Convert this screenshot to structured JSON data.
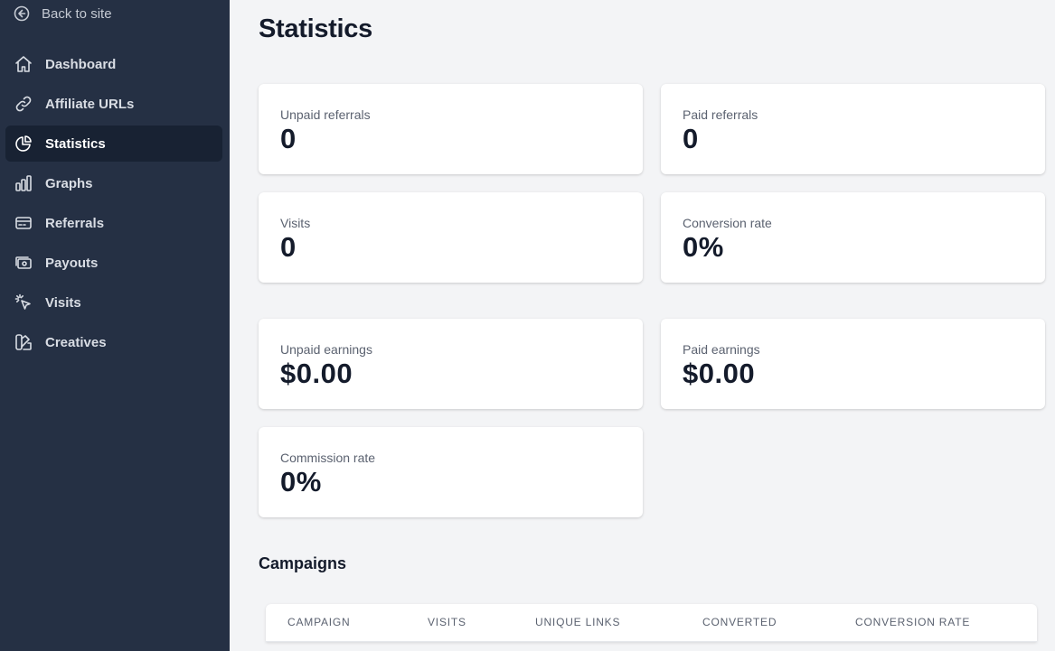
{
  "sidebar": {
    "back_label": "Back to site",
    "items": [
      {
        "label": "Dashboard",
        "icon": "home-icon",
        "active": false
      },
      {
        "label": "Affiliate URLs",
        "icon": "link-icon",
        "active": false
      },
      {
        "label": "Statistics",
        "icon": "pie-chart-icon",
        "active": true
      },
      {
        "label": "Graphs",
        "icon": "bar-chart-icon",
        "active": false
      },
      {
        "label": "Referrals",
        "icon": "credit-card-icon",
        "active": false
      },
      {
        "label": "Payouts",
        "icon": "cash-icon",
        "active": false
      },
      {
        "label": "Visits",
        "icon": "cursor-click-icon",
        "active": false
      },
      {
        "label": "Creatives",
        "icon": "swatch-icon",
        "active": false
      }
    ]
  },
  "main": {
    "title": "Statistics",
    "cards": {
      "unpaid_referrals": {
        "label": "Unpaid referrals",
        "value": "0"
      },
      "paid_referrals": {
        "label": "Paid referrals",
        "value": "0"
      },
      "visits": {
        "label": "Visits",
        "value": "0"
      },
      "conversion_rate": {
        "label": "Conversion rate",
        "value": "0%"
      },
      "unpaid_earnings": {
        "label": "Unpaid earnings",
        "value": "$0.00"
      },
      "paid_earnings": {
        "label": "Paid earnings",
        "value": "$0.00"
      },
      "commission_rate": {
        "label": "Commission rate",
        "value": "0%"
      }
    },
    "campaigns": {
      "title": "Campaigns",
      "columns": [
        "CAMPAIGN",
        "VISITS",
        "UNIQUE LINKS",
        "CONVERTED",
        "CONVERSION RATE"
      ]
    }
  },
  "colors": {
    "sidebar_bg": "#253044",
    "sidebar_active_bg": "#182233",
    "page_bg": "#f3f4f6",
    "text_dark": "#141b2b",
    "text_muted": "#5b6270"
  }
}
